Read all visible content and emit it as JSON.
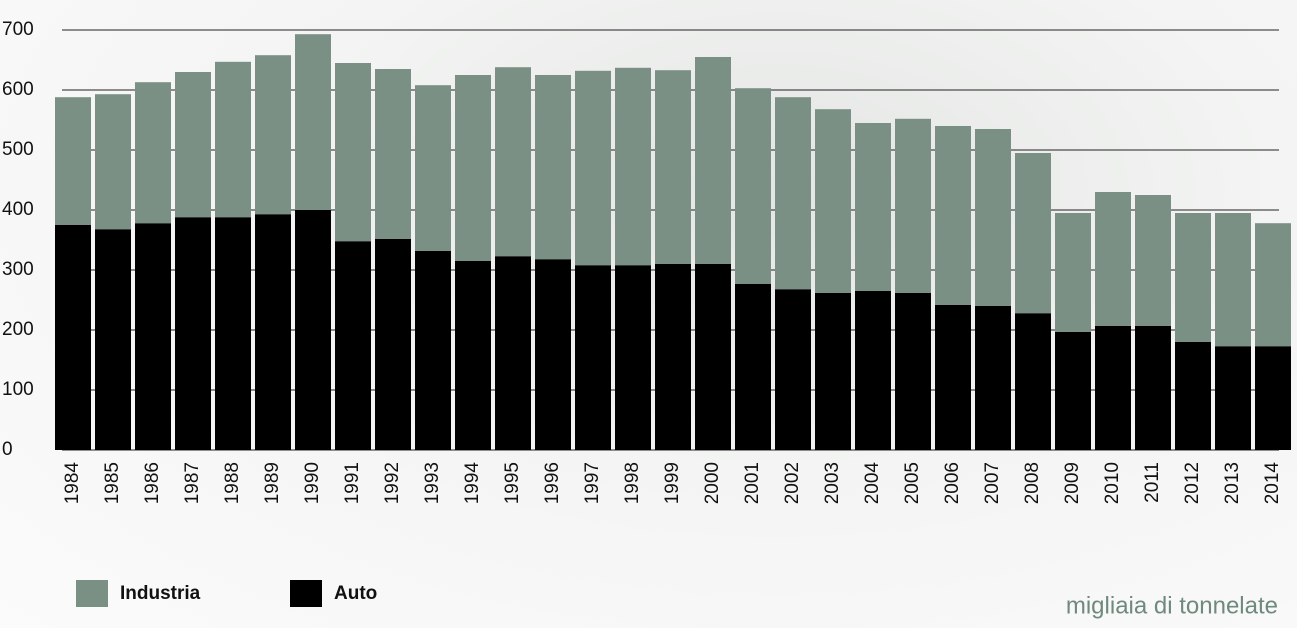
{
  "chart_data": {
    "type": "bar",
    "stacked": true,
    "categories": [
      "1984",
      "1985",
      "1986",
      "1987",
      "1988",
      "1989",
      "1990",
      "1991",
      "1992",
      "1993",
      "1994",
      "1995",
      "1996",
      "1997",
      "1998",
      "1999",
      "2000",
      "2001",
      "2002",
      "2003",
      "2004",
      "2005",
      "2006",
      "2007",
      "2008",
      "2009",
      "2010",
      "2011",
      "2012",
      "2013",
      "2014"
    ],
    "series": [
      {
        "name": "Industria",
        "color": "#7b9084",
        "values": [
          213,
          225,
          235,
          242,
          259,
          265,
          293,
          297,
          283,
          276,
          310,
          315,
          307,
          324,
          329,
          323,
          345,
          326,
          320,
          306,
          280,
          290,
          298,
          295,
          267,
          198,
          223,
          218,
          215,
          222,
          205
        ]
      },
      {
        "name": "Auto",
        "color": "#000000",
        "values": [
          375,
          368,
          378,
          388,
          388,
          393,
          400,
          348,
          352,
          332,
          315,
          323,
          318,
          308,
          308,
          310,
          310,
          277,
          268,
          262,
          265,
          262,
          242,
          240,
          228,
          197,
          207,
          207,
          180,
          173,
          173
        ]
      }
    ],
    "ylim": [
      0,
      700
    ],
    "yticks": [
      0,
      100,
      200,
      300,
      400,
      500,
      600,
      700
    ],
    "grid": true,
    "annotation": "migliaia di tonnelate"
  }
}
